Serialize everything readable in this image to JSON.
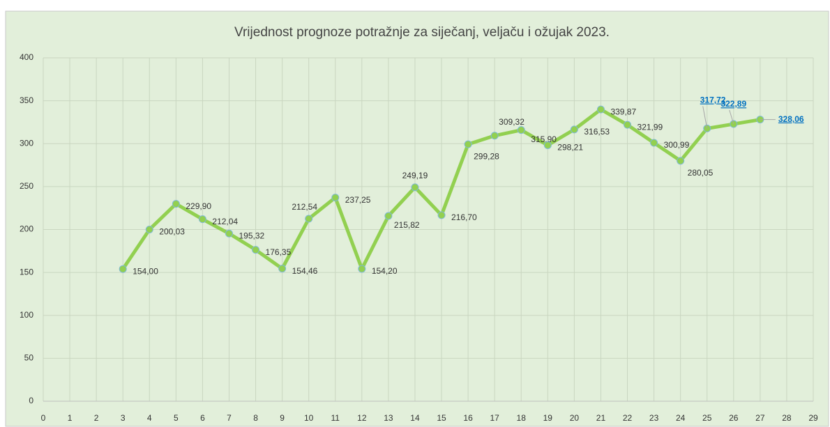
{
  "chart_data": {
    "type": "line",
    "title": "Vrijednost prognoze potražnje za siječanj, veljaču i ožujak 2023.",
    "x": [
      3,
      4,
      5,
      6,
      7,
      8,
      9,
      10,
      11,
      12,
      13,
      14,
      15,
      16,
      17,
      18,
      19,
      20,
      21,
      22,
      23,
      24,
      25,
      26,
      27
    ],
    "series": [
      {
        "color": "#92d050",
        "values": [
          154.0,
          200.03,
          229.9,
          212.04,
          195.32,
          176.35,
          154.46,
          212.54,
          237.25,
          154.2,
          215.82,
          249.19,
          216.7,
          299.28,
          309.32,
          315.9,
          298.21,
          316.53,
          339.87,
          321.99,
          300.99,
          280.05,
          317.72,
          322.89,
          328.06
        ],
        "value_labels": [
          "154,00",
          "200,03",
          "229,90",
          "212,04",
          "195,32",
          "176,35",
          "154,46",
          "212,54",
          "237,25",
          "154,20",
          "215,82",
          "249,19",
          "216,70",
          "299,28",
          "309,32",
          "315,90",
          "298,21",
          "316,53",
          "339,87",
          "321,99",
          "300,99",
          "280,05",
          "317,72",
          "322,89",
          "328,06"
        ],
        "value_label_colors": [
          "#333333",
          "#333333",
          "#333333",
          "#333333",
          "#333333",
          "#333333",
          "#333333",
          "#333333",
          "#333333",
          "#333333",
          "#333333",
          "#333333",
          "#333333",
          "#333333",
          "#333333",
          "#333333",
          "#333333",
          "#333333",
          "#333333",
          "#333333",
          "#333333",
          "#333333",
          "#0070c0",
          "#0070c0",
          "#0070c0"
        ]
      }
    ],
    "xlim": [
      0,
      29
    ],
    "xticks": [
      0,
      1,
      2,
      3,
      4,
      5,
      6,
      7,
      8,
      9,
      10,
      11,
      12,
      13,
      14,
      15,
      16,
      17,
      18,
      19,
      20,
      21,
      22,
      23,
      24,
      25,
      26,
      27,
      28,
      29
    ],
    "ylim": [
      0,
      400
    ],
    "yticks": [
      0,
      50,
      100,
      150,
      200,
      250,
      300,
      350,
      400
    ],
    "grid": true
  }
}
